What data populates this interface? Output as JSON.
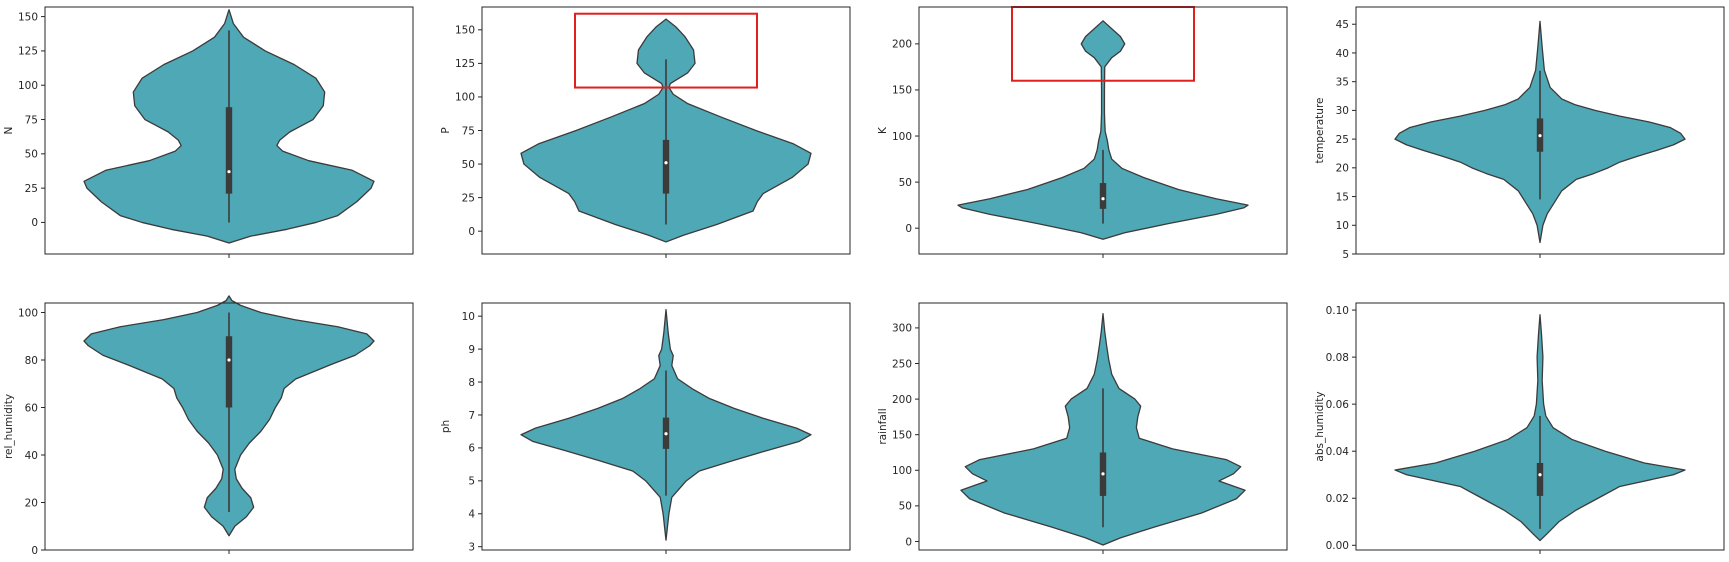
{
  "figure": {
    "title": "",
    "violin_color": "#4fa8b5",
    "edge_color": "#3b3b3b",
    "highlight_color": "#e01f1f"
  },
  "chart_data": [
    {
      "type": "violin",
      "ylabel": "N",
      "ylim": [
        -23,
        157
      ],
      "yticks": [
        0,
        25,
        50,
        75,
        100,
        125,
        150
      ],
      "density": [
        [
          -15,
          0
        ],
        [
          -10,
          0.15
        ],
        [
          -5,
          0.4
        ],
        [
          0,
          0.6
        ],
        [
          5,
          0.75
        ],
        [
          15,
          0.88
        ],
        [
          25,
          0.98
        ],
        [
          30,
          1.0
        ],
        [
          38,
          0.85
        ],
        [
          45,
          0.55
        ],
        [
          52,
          0.37
        ],
        [
          56,
          0.33
        ],
        [
          60,
          0.35
        ],
        [
          66,
          0.42
        ],
        [
          75,
          0.58
        ],
        [
          85,
          0.65
        ],
        [
          95,
          0.66
        ],
        [
          105,
          0.6
        ],
        [
          115,
          0.45
        ],
        [
          125,
          0.25
        ],
        [
          135,
          0.1
        ],
        [
          145,
          0.03
        ],
        [
          155,
          0.0
        ]
      ],
      "box": {
        "q1": 21,
        "median": 37,
        "q3": 84,
        "whisker_low": 0,
        "whisker_high": 140
      },
      "highlight": null
    },
    {
      "type": "violin",
      "ylabel": "P",
      "ylim": [
        -17,
        167
      ],
      "yticks": [
        0,
        25,
        50,
        75,
        100,
        125,
        150
      ],
      "density": [
        [
          -8,
          0
        ],
        [
          -3,
          0.12
        ],
        [
          5,
          0.35
        ],
        [
          15,
          0.6
        ],
        [
          22,
          0.63
        ],
        [
          28,
          0.67
        ],
        [
          40,
          0.87
        ],
        [
          50,
          0.98
        ],
        [
          58,
          1.0
        ],
        [
          65,
          0.88
        ],
        [
          75,
          0.62
        ],
        [
          85,
          0.38
        ],
        [
          95,
          0.15
        ],
        [
          102,
          0.05
        ],
        [
          107,
          0.02
        ],
        [
          110,
          0.03
        ],
        [
          118,
          0.15
        ],
        [
          125,
          0.2
        ],
        [
          135,
          0.19
        ],
        [
          145,
          0.13
        ],
        [
          152,
          0.07
        ],
        [
          158,
          0.0
        ]
      ],
      "box": {
        "q1": 28,
        "median": 51,
        "q3": 68,
        "whisker_low": 5,
        "whisker_high": 128
      },
      "highlight": {
        "y_low": 107,
        "y_high": 162,
        "x_low": -0.5,
        "x_high": 0.5
      }
    },
    {
      "type": "violin",
      "ylabel": "K",
      "ylim": [
        -28,
        240
      ],
      "yticks": [
        0,
        50,
        100,
        150,
        200
      ],
      "density": [
        [
          -12,
          0
        ],
        [
          -5,
          0.15
        ],
        [
          5,
          0.45
        ],
        [
          15,
          0.78
        ],
        [
          22,
          0.97
        ],
        [
          25,
          1.0
        ],
        [
          32,
          0.78
        ],
        [
          42,
          0.52
        ],
        [
          55,
          0.28
        ],
        [
          65,
          0.13
        ],
        [
          75,
          0.06
        ],
        [
          85,
          0.04
        ],
        [
          95,
          0.03
        ],
        [
          105,
          0.015
        ],
        [
          115,
          0.012
        ],
        [
          125,
          0.01
        ],
        [
          150,
          0.01
        ],
        [
          175,
          0.012
        ],
        [
          185,
          0.06
        ],
        [
          192,
          0.12
        ],
        [
          200,
          0.15
        ],
        [
          208,
          0.12
        ],
        [
          215,
          0.07
        ],
        [
          225,
          0.0
        ]
      ],
      "box": {
        "q1": 21,
        "median": 32,
        "q3": 49,
        "whisker_low": 5,
        "whisker_high": 85
      },
      "highlight": {
        "y_low": 160,
        "y_high": 240,
        "x_low": -0.5,
        "x_high": 0.5
      }
    },
    {
      "type": "violin",
      "ylabel": "temperature",
      "ylim": [
        5,
        48
      ],
      "yticks": [
        5,
        10,
        15,
        20,
        25,
        30,
        35,
        40,
        45
      ],
      "density": [
        [
          7,
          0
        ],
        [
          10,
          0.02
        ],
        [
          12,
          0.05
        ],
        [
          14,
          0.1
        ],
        [
          16,
          0.15
        ],
        [
          18,
          0.25
        ],
        [
          19,
          0.37
        ],
        [
          20,
          0.47
        ],
        [
          21,
          0.55
        ],
        [
          22,
          0.67
        ],
        [
          23,
          0.8
        ],
        [
          24,
          0.92
        ],
        [
          25,
          1.0
        ],
        [
          26,
          0.97
        ],
        [
          27,
          0.9
        ],
        [
          28,
          0.75
        ],
        [
          29,
          0.55
        ],
        [
          30,
          0.38
        ],
        [
          31,
          0.24
        ],
        [
          32,
          0.15
        ],
        [
          34,
          0.07
        ],
        [
          37,
          0.03
        ],
        [
          41,
          0.015
        ],
        [
          44,
          0.005
        ],
        [
          45.5,
          0
        ]
      ],
      "box": {
        "q1": 22.8,
        "median": 25.6,
        "q3": 28.6,
        "whisker_low": 14.5,
        "whisker_high": 36.9
      },
      "highlight": null
    },
    {
      "type": "violin",
      "ylabel": "rel_humidity",
      "ylim": [
        0,
        104
      ],
      "yticks": [
        0,
        20,
        40,
        60,
        80,
        100
      ],
      "density": [
        [
          6,
          0
        ],
        [
          10,
          0.04
        ],
        [
          14,
          0.12
        ],
        [
          18,
          0.17
        ],
        [
          22,
          0.15
        ],
        [
          26,
          0.09
        ],
        [
          30,
          0.05
        ],
        [
          34,
          0.04
        ],
        [
          40,
          0.08
        ],
        [
          45,
          0.14
        ],
        [
          50,
          0.22
        ],
        [
          55,
          0.28
        ],
        [
          60,
          0.32
        ],
        [
          64,
          0.36
        ],
        [
          68,
          0.38
        ],
        [
          72,
          0.46
        ],
        [
          78,
          0.7
        ],
        [
          82,
          0.87
        ],
        [
          86,
          0.97
        ],
        [
          88,
          1.0
        ],
        [
          91,
          0.95
        ],
        [
          94,
          0.75
        ],
        [
          97,
          0.45
        ],
        [
          100,
          0.22
        ],
        [
          103,
          0.08
        ],
        [
          105,
          0.02
        ],
        [
          107,
          0
        ]
      ],
      "box": {
        "q1": 60,
        "median": 80,
        "q3": 90,
        "whisker_low": 16,
        "whisker_high": 100
      },
      "highlight": null
    },
    {
      "type": "violin",
      "ylabel": "ph",
      "ylim": [
        2.9,
        10.4
      ],
      "yticks": [
        3,
        4,
        5,
        6,
        7,
        8,
        9,
        10
      ],
      "density": [
        [
          3.2,
          0
        ],
        [
          3.6,
          0.01
        ],
        [
          4.0,
          0.02
        ],
        [
          4.5,
          0.04
        ],
        [
          5.0,
          0.14
        ],
        [
          5.3,
          0.23
        ],
        [
          5.6,
          0.45
        ],
        [
          5.9,
          0.68
        ],
        [
          6.2,
          0.92
        ],
        [
          6.4,
          1.0
        ],
        [
          6.6,
          0.9
        ],
        [
          6.9,
          0.67
        ],
        [
          7.2,
          0.47
        ],
        [
          7.5,
          0.3
        ],
        [
          7.8,
          0.18
        ],
        [
          8.1,
          0.08
        ],
        [
          8.5,
          0.04
        ],
        [
          8.8,
          0.05
        ],
        [
          9.0,
          0.03
        ],
        [
          9.5,
          0.015
        ],
        [
          10.2,
          0
        ]
      ],
      "box": {
        "q1": 5.97,
        "median": 6.43,
        "q3": 6.92,
        "whisker_low": 4.55,
        "whisker_high": 8.35
      },
      "highlight": null
    },
    {
      "type": "violin",
      "ylabel": "rainfall",
      "ylim": [
        -12,
        335
      ],
      "yticks": [
        0,
        50,
        100,
        150,
        200,
        250,
        300
      ],
      "density": [
        [
          -5,
          0
        ],
        [
          5,
          0.12
        ],
        [
          20,
          0.35
        ],
        [
          40,
          0.68
        ],
        [
          60,
          0.92
        ],
        [
          72,
          0.98
        ],
        [
          85,
          0.8
        ],
        [
          95,
          0.9
        ],
        [
          105,
          0.95
        ],
        [
          115,
          0.85
        ],
        [
          130,
          0.48
        ],
        [
          145,
          0.25
        ],
        [
          160,
          0.23
        ],
        [
          175,
          0.24
        ],
        [
          190,
          0.26
        ],
        [
          200,
          0.22
        ],
        [
          215,
          0.11
        ],
        [
          235,
          0.06
        ],
        [
          255,
          0.04
        ],
        [
          275,
          0.025
        ],
        [
          295,
          0.012
        ],
        [
          320,
          0
        ]
      ],
      "box": {
        "q1": 64,
        "median": 95,
        "q3": 125,
        "whisker_low": 20,
        "whisker_high": 215
      },
      "highlight": null
    },
    {
      "type": "violin",
      "ylabel": "abs_humidity",
      "ylim": [
        -0.002,
        0.103
      ],
      "yticks": [
        0.0,
        0.02,
        0.04,
        0.06,
        0.08,
        0.1
      ],
      "density": [
        [
          0.002,
          0
        ],
        [
          0.005,
          0.05
        ],
        [
          0.01,
          0.13
        ],
        [
          0.015,
          0.25
        ],
        [
          0.02,
          0.4
        ],
        [
          0.025,
          0.55
        ],
        [
          0.03,
          0.92
        ],
        [
          0.032,
          1.0
        ],
        [
          0.035,
          0.72
        ],
        [
          0.04,
          0.45
        ],
        [
          0.045,
          0.22
        ],
        [
          0.05,
          0.09
        ],
        [
          0.055,
          0.04
        ],
        [
          0.06,
          0.025
        ],
        [
          0.07,
          0.015
        ],
        [
          0.08,
          0.02
        ],
        [
          0.09,
          0.01
        ],
        [
          0.098,
          0
        ]
      ],
      "box": {
        "q1": 0.021,
        "median": 0.03,
        "q3": 0.035,
        "whisker_low": 0.007,
        "whisker_high": 0.055
      },
      "highlight": null
    }
  ]
}
